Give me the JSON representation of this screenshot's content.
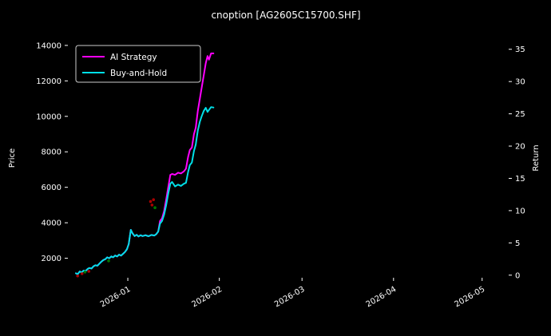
{
  "chart_data": {
    "type": "line",
    "title": "cnoption [AG2605C15700.SHF]",
    "xlabel": "",
    "ylabel": "Price",
    "y2label": "Return",
    "background": "#000000",
    "text_color": "#ffffff",
    "grid": false,
    "legend_position": "top-left",
    "xlim_days_rel_jan1": [
      -20.3,
      129
    ],
    "ylim": [
      900,
      14400
    ],
    "y2lim": [
      -0.4,
      36.7
    ],
    "y_ticks": [
      2000,
      4000,
      6000,
      8000,
      10000,
      12000,
      14000
    ],
    "y2_ticks": [
      0,
      5,
      10,
      15,
      20,
      25,
      30,
      35
    ],
    "x_ticks": [
      {
        "day": 0,
        "label": "2026-01"
      },
      {
        "day": 31,
        "label": "2026-02"
      },
      {
        "day": 59,
        "label": "2026-03"
      },
      {
        "day": 90,
        "label": "2026-04"
      },
      {
        "day": 120,
        "label": "2026-05"
      }
    ],
    "series": [
      {
        "name": "AI Strategy",
        "color": "#ff00ff",
        "points": [
          [
            -17.6,
            1150
          ],
          [
            -17,
            1100
          ],
          [
            -16.3,
            1250
          ],
          [
            -15.6,
            1200
          ],
          [
            -15,
            1300
          ],
          [
            -14.3,
            1280
          ],
          [
            -13.6,
            1400
          ],
          [
            -13,
            1450
          ],
          [
            -12.3,
            1420
          ],
          [
            -11.6,
            1550
          ],
          [
            -11,
            1600
          ],
          [
            -10.3,
            1580
          ],
          [
            -9.6,
            1700
          ],
          [
            -9,
            1800
          ],
          [
            -8.3,
            1900
          ],
          [
            -7.6,
            1950
          ],
          [
            -7,
            2050
          ],
          [
            -6.3,
            2000
          ],
          [
            -5.6,
            2100
          ],
          [
            -5,
            2050
          ],
          [
            -4.3,
            2150
          ],
          [
            -3.6,
            2100
          ],
          [
            -3,
            2200
          ],
          [
            -2.3,
            2150
          ],
          [
            -1.6,
            2250
          ],
          [
            -1,
            2350
          ],
          [
            -0.3,
            2500
          ],
          [
            0.3,
            2800
          ],
          [
            1,
            3600
          ],
          [
            1.6,
            3400
          ],
          [
            2.3,
            3250
          ],
          [
            3,
            3320
          ],
          [
            3.6,
            3230
          ],
          [
            4.3,
            3300
          ],
          [
            5,
            3250
          ],
          [
            6,
            3300
          ],
          [
            7,
            3240
          ],
          [
            8,
            3310
          ],
          [
            9,
            3280
          ],
          [
            9.6,
            3350
          ],
          [
            10.3,
            3500
          ],
          [
            10.9,
            4100
          ],
          [
            11.6,
            4250
          ],
          [
            12.3,
            4650
          ],
          [
            13,
            5300
          ],
          [
            13.7,
            6000
          ],
          [
            14.4,
            6700
          ],
          [
            15,
            6750
          ],
          [
            16,
            6700
          ],
          [
            17,
            6820
          ],
          [
            18,
            6780
          ],
          [
            19,
            6900
          ],
          [
            19.7,
            7050
          ],
          [
            20.4,
            7700
          ],
          [
            21,
            8100
          ],
          [
            21.7,
            8250
          ],
          [
            22.4,
            9000
          ],
          [
            23,
            9350
          ],
          [
            23.7,
            10300
          ],
          [
            24.4,
            11000
          ],
          [
            25,
            11600
          ],
          [
            25.7,
            12300
          ],
          [
            26.4,
            13000
          ],
          [
            27,
            13400
          ],
          [
            27.5,
            13200
          ],
          [
            28.2,
            13550
          ],
          [
            29,
            13550
          ]
        ]
      },
      {
        "name": "Buy-and-Hold",
        "color": "#00e0e8",
        "points": [
          [
            -17.6,
            1150
          ],
          [
            -17,
            1100
          ],
          [
            -16.3,
            1250
          ],
          [
            -15.6,
            1200
          ],
          [
            -15,
            1300
          ],
          [
            -14.3,
            1280
          ],
          [
            -13.6,
            1400
          ],
          [
            -13,
            1450
          ],
          [
            -12.3,
            1420
          ],
          [
            -11.6,
            1550
          ],
          [
            -11,
            1600
          ],
          [
            -10.3,
            1580
          ],
          [
            -9.6,
            1700
          ],
          [
            -9,
            1800
          ],
          [
            -8.3,
            1900
          ],
          [
            -7.6,
            1950
          ],
          [
            -7,
            2050
          ],
          [
            -6.3,
            2000
          ],
          [
            -5.6,
            2100
          ],
          [
            -5,
            2050
          ],
          [
            -4.3,
            2150
          ],
          [
            -3.6,
            2100
          ],
          [
            -3,
            2200
          ],
          [
            -2.3,
            2150
          ],
          [
            -1.6,
            2250
          ],
          [
            -1,
            2350
          ],
          [
            -0.3,
            2500
          ],
          [
            0.3,
            2800
          ],
          [
            1,
            3600
          ],
          [
            1.6,
            3400
          ],
          [
            2.3,
            3250
          ],
          [
            3,
            3320
          ],
          [
            3.6,
            3230
          ],
          [
            4.3,
            3300
          ],
          [
            5,
            3250
          ],
          [
            6,
            3300
          ],
          [
            7,
            3240
          ],
          [
            8,
            3310
          ],
          [
            9,
            3280
          ],
          [
            9.6,
            3350
          ],
          [
            10.3,
            3500
          ],
          [
            10.9,
            3950
          ],
          [
            11.6,
            4100
          ],
          [
            12.3,
            4450
          ],
          [
            13,
            5000
          ],
          [
            13.7,
            5650
          ],
          [
            14.4,
            6200
          ],
          [
            15,
            6300
          ],
          [
            16,
            6050
          ],
          [
            17,
            6150
          ],
          [
            18,
            6080
          ],
          [
            19,
            6200
          ],
          [
            19.7,
            6250
          ],
          [
            20.4,
            6850
          ],
          [
            21,
            7250
          ],
          [
            21.7,
            7400
          ],
          [
            22.4,
            8050
          ],
          [
            23,
            8400
          ],
          [
            23.7,
            9200
          ],
          [
            24.4,
            9700
          ],
          [
            25,
            10000
          ],
          [
            25.7,
            10300
          ],
          [
            26.4,
            10480
          ],
          [
            27,
            10250
          ],
          [
            28.2,
            10520
          ],
          [
            29,
            10500
          ]
        ]
      }
    ],
    "markers": [
      {
        "day": -17,
        "price": 1000,
        "color": "#aa0000"
      },
      {
        "day": -15.5,
        "price": 1130,
        "color": "#aa0000"
      },
      {
        "day": -13.2,
        "price": 1260,
        "color": "#aa0000"
      },
      {
        "day": -14.5,
        "price": 1220,
        "color": "#007700"
      },
      {
        "day": -6.5,
        "price": 1850,
        "color": "#007700"
      },
      {
        "day": 7.7,
        "price": 5200,
        "color": "#aa0000"
      },
      {
        "day": 8.2,
        "price": 5000,
        "color": "#aa0000"
      },
      {
        "day": 8.7,
        "price": 5300,
        "color": "#aa0000"
      },
      {
        "day": 9.2,
        "price": 4850,
        "color": "#007700"
      }
    ]
  }
}
